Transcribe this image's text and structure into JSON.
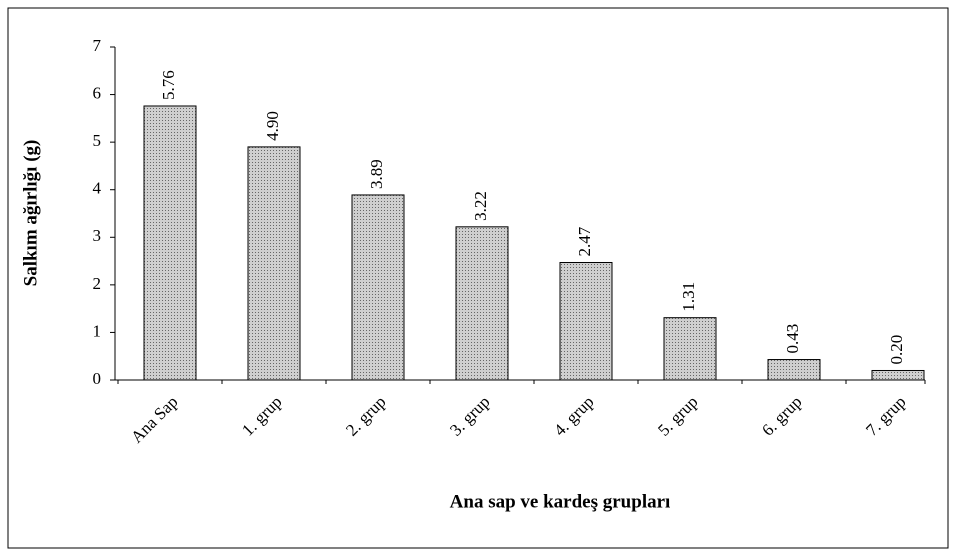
{
  "chart_data": {
    "type": "bar",
    "xlabel": "Ana sap ve kardeş grupları",
    "ylabel": "Salkım ağırlığı (g)",
    "categories": [
      "Ana Sap",
      "1. grup",
      "2. grup",
      "3. grup",
      "4. grup",
      "5. grup",
      "6. grup",
      "7. grup"
    ],
    "values": [
      5.76,
      4.9,
      3.89,
      3.22,
      2.47,
      1.31,
      0.43,
      0.2
    ],
    "value_labels": [
      "5.76",
      "4.90",
      "3.89",
      "3.22",
      "2.47",
      "1.31",
      "0.43",
      "0.20"
    ],
    "color": "#cfcfcf",
    "ylim": [
      0,
      7
    ],
    "yticks": [
      0,
      1,
      2,
      3,
      4,
      5,
      6,
      7
    ]
  }
}
